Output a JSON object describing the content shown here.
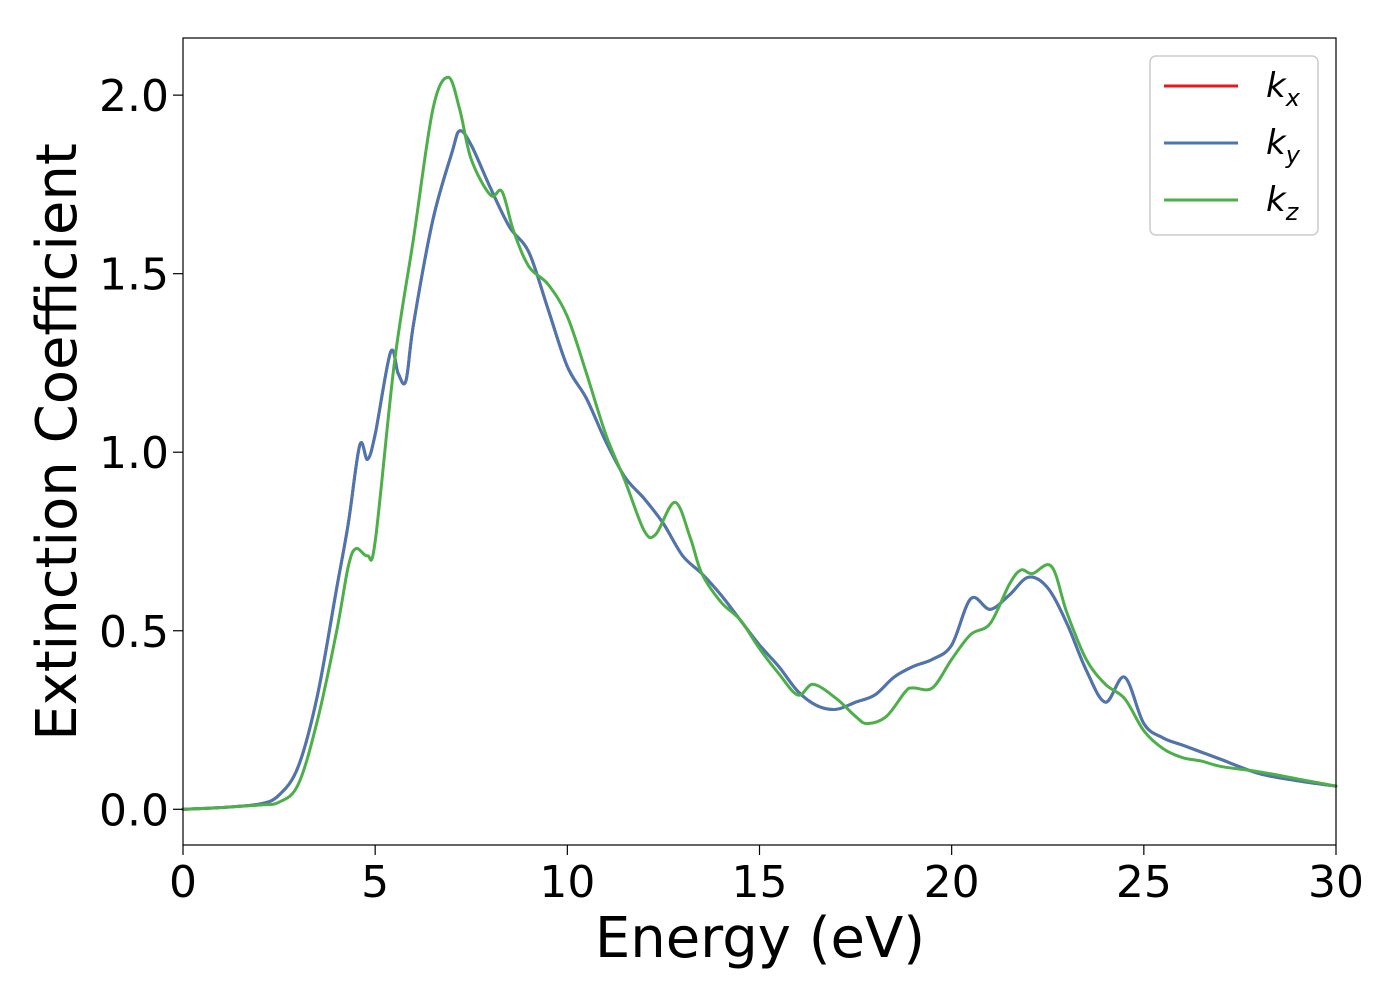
{
  "chart_data": {
    "type": "line",
    "title": "",
    "xlabel": "Energy (eV)",
    "ylabel": "Extinction Coefficient",
    "xlim": [
      0,
      30
    ],
    "ylim": [
      -0.1,
      2.16
    ],
    "xticks": [
      0,
      5,
      10,
      15,
      20,
      25,
      30
    ],
    "xtick_labels": [
      "0",
      "5",
      "10",
      "15",
      "20",
      "25",
      "30"
    ],
    "yticks": [
      0.0,
      0.5,
      1.0,
      1.5,
      2.0
    ],
    "ytick_labels": [
      "0.0",
      "0.5",
      "1.0",
      "1.5",
      "2.0"
    ],
    "grid": false,
    "legend_position": "top-right",
    "series": [
      {
        "name": "k_x",
        "label_main": "k",
        "label_sub": "x",
        "color": "#e41a1c",
        "x": [
          0,
          1,
          2,
          2.5,
          3,
          3.5,
          4,
          4.3,
          4.6,
          4.8,
          5.0,
          5.4,
          5.6,
          5.8,
          6.0,
          6.5,
          7.0,
          7.2,
          7.5,
          8.0,
          8.5,
          9.0,
          9.5,
          10.0,
          10.5,
          11.0,
          11.5,
          12.0,
          12.5,
          13.0,
          13.5,
          14.0,
          14.5,
          15.0,
          15.5,
          16.0,
          16.5,
          17.0,
          17.5,
          18.0,
          18.5,
          19.0,
          19.5,
          20.0,
          20.5,
          21.0,
          21.5,
          22.0,
          22.5,
          23.0,
          23.5,
          24.0,
          24.5,
          25.0,
          25.5,
          26.0,
          26.5,
          27.0,
          28.0,
          29.0,
          30.0
        ],
        "y": [
          0,
          0.005,
          0.015,
          0.04,
          0.12,
          0.32,
          0.62,
          0.8,
          1.02,
          0.98,
          1.05,
          1.28,
          1.22,
          1.2,
          1.36,
          1.65,
          1.84,
          1.9,
          1.86,
          1.74,
          1.63,
          1.56,
          1.4,
          1.24,
          1.15,
          1.03,
          0.93,
          0.87,
          0.8,
          0.71,
          0.66,
          0.6,
          0.53,
          0.46,
          0.4,
          0.33,
          0.29,
          0.28,
          0.3,
          0.32,
          0.37,
          0.4,
          0.42,
          0.46,
          0.59,
          0.56,
          0.6,
          0.65,
          0.62,
          0.52,
          0.39,
          0.3,
          0.37,
          0.24,
          0.2,
          0.18,
          0.16,
          0.14,
          0.1,
          0.08,
          0.065
        ]
      },
      {
        "name": "k_y",
        "label_main": "k",
        "label_sub": "y",
        "color": "#4a77b0",
        "x": [
          0,
          1,
          2,
          2.5,
          3,
          3.5,
          4,
          4.3,
          4.6,
          4.8,
          5.0,
          5.4,
          5.6,
          5.8,
          6.0,
          6.5,
          7.0,
          7.2,
          7.5,
          8.0,
          8.5,
          9.0,
          9.5,
          10.0,
          10.5,
          11.0,
          11.5,
          12.0,
          12.5,
          13.0,
          13.5,
          14.0,
          14.5,
          15.0,
          15.5,
          16.0,
          16.5,
          17.0,
          17.5,
          18.0,
          18.5,
          19.0,
          19.5,
          20.0,
          20.5,
          21.0,
          21.5,
          22.0,
          22.5,
          23.0,
          23.5,
          24.0,
          24.5,
          25.0,
          25.5,
          26.0,
          26.5,
          27.0,
          28.0,
          29.0,
          30.0
        ],
        "y": [
          0,
          0.005,
          0.015,
          0.04,
          0.12,
          0.32,
          0.62,
          0.8,
          1.02,
          0.98,
          1.05,
          1.28,
          1.22,
          1.2,
          1.36,
          1.65,
          1.84,
          1.9,
          1.86,
          1.74,
          1.63,
          1.56,
          1.4,
          1.24,
          1.15,
          1.03,
          0.93,
          0.87,
          0.8,
          0.71,
          0.66,
          0.6,
          0.53,
          0.46,
          0.4,
          0.33,
          0.29,
          0.28,
          0.3,
          0.32,
          0.37,
          0.4,
          0.42,
          0.46,
          0.59,
          0.56,
          0.6,
          0.65,
          0.62,
          0.52,
          0.39,
          0.3,
          0.37,
          0.24,
          0.2,
          0.18,
          0.16,
          0.14,
          0.1,
          0.08,
          0.065
        ]
      },
      {
        "name": "k_z",
        "label_main": "k",
        "label_sub": "z",
        "color": "#4daf4a",
        "x": [
          0,
          1,
          2,
          2.5,
          3,
          3.5,
          4,
          4.3,
          4.5,
          4.8,
          5.0,
          5.5,
          6.0,
          6.5,
          6.9,
          7.2,
          7.5,
          8.0,
          8.3,
          8.6,
          9.0,
          9.5,
          10.0,
          10.5,
          11.0,
          11.5,
          12.0,
          12.3,
          12.8,
          13.2,
          13.5,
          14.0,
          14.5,
          15.0,
          15.5,
          16.0,
          16.4,
          17.0,
          17.5,
          17.8,
          18.3,
          18.8,
          19.0,
          19.5,
          20.0,
          20.5,
          21.0,
          21.5,
          21.8,
          22.1,
          22.6,
          23.0,
          23.5,
          24.0,
          24.5,
          25.0,
          25.5,
          26.0,
          26.5,
          27.0,
          28.0,
          29.0,
          30.0
        ],
        "y": [
          0,
          0.005,
          0.012,
          0.02,
          0.07,
          0.25,
          0.5,
          0.68,
          0.73,
          0.71,
          0.75,
          1.25,
          1.6,
          1.96,
          2.05,
          1.96,
          1.82,
          1.72,
          1.73,
          1.62,
          1.52,
          1.47,
          1.38,
          1.22,
          1.05,
          0.92,
          0.78,
          0.77,
          0.86,
          0.76,
          0.66,
          0.58,
          0.53,
          0.45,
          0.38,
          0.32,
          0.35,
          0.31,
          0.26,
          0.24,
          0.26,
          0.33,
          0.34,
          0.34,
          0.42,
          0.49,
          0.52,
          0.63,
          0.67,
          0.66,
          0.68,
          0.55,
          0.42,
          0.35,
          0.31,
          0.22,
          0.17,
          0.145,
          0.135,
          0.12,
          0.105,
          0.085,
          0.065
        ]
      }
    ]
  }
}
